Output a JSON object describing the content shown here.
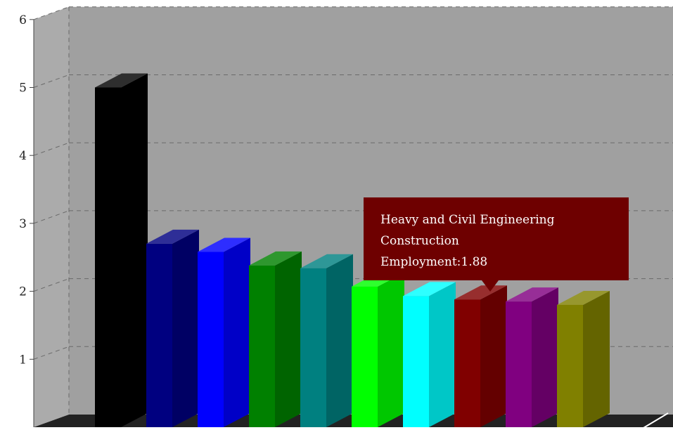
{
  "chart_data": {
    "type": "bar",
    "title": "",
    "xlabel": "",
    "ylabel": "",
    "categories": [
      "",
      "",
      "",
      "",
      "",
      "",
      "",
      "",
      "",
      ""
    ],
    "values": [
      5.0,
      2.7,
      2.58,
      2.38,
      2.34,
      2.07,
      1.93,
      1.88,
      1.85,
      1.8
    ],
    "ylim": [
      0,
      6
    ],
    "yticks": [
      "1",
      "2",
      "3",
      "4",
      "5",
      "6"
    ],
    "grid": true,
    "style": "3d",
    "colors": [
      "#000000",
      "#000080",
      "#0000ff",
      "#008000",
      "#008080",
      "#00ff00",
      "#00ffff",
      "#800000",
      "#800080",
      "#808000"
    ],
    "plot_background": "#a0a0a0",
    "floor_color": "#222222",
    "tooltip": {
      "lines": [
        "Heavy and Civil Engineering",
        "Construction",
        "Employment:1.88"
      ],
      "background": "#6e0000",
      "bar_index": 7
    }
  }
}
